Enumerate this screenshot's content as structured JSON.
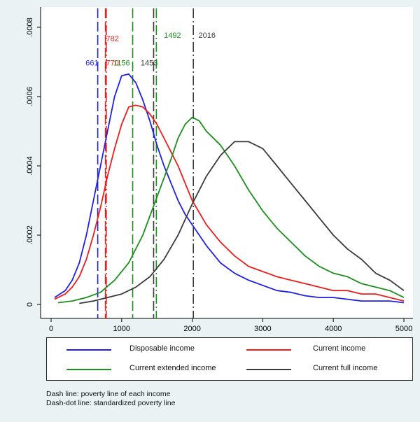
{
  "chart_data": {
    "type": "line",
    "title": "",
    "xlabel": "",
    "ylabel": "",
    "xlim": [
      0,
      5000
    ],
    "ylim": [
      0,
      0.0008
    ],
    "x_ticks": [
      0,
      1000,
      2000,
      3000,
      4000,
      5000
    ],
    "y_ticks": [
      0,
      0.0002,
      0.0004,
      0.0006,
      0.0008
    ],
    "x_tick_labels": [
      "0",
      "1000",
      "2000",
      "3000",
      "4000",
      "5000"
    ],
    "y_tick_labels": [
      "0",
      ".0002",
      ".0004",
      ".0006",
      ".0008"
    ],
    "grid": false,
    "legend_placement": "bottom",
    "series": [
      {
        "name": "Disposable income",
        "color": "#1f1fe6",
        "points": [
          [
            50,
            2e-05
          ],
          [
            200,
            4e-05
          ],
          [
            300,
            7e-05
          ],
          [
            400,
            0.00012
          ],
          [
            500,
            0.0002
          ],
          [
            600,
            0.0003
          ],
          [
            700,
            0.0004
          ],
          [
            800,
            0.0005
          ],
          [
            900,
            0.0006
          ],
          [
            1000,
            0.00066
          ],
          [
            1100,
            0.000665
          ],
          [
            1200,
            0.00064
          ],
          [
            1300,
            0.00059
          ],
          [
            1400,
            0.00053
          ],
          [
            1500,
            0.00046
          ],
          [
            1600,
            0.0004
          ],
          [
            1700,
            0.00035
          ],
          [
            1800,
            0.0003
          ],
          [
            1900,
            0.00026
          ],
          [
            2000,
            0.00023
          ],
          [
            2200,
            0.00017
          ],
          [
            2400,
            0.00012
          ],
          [
            2600,
            9e-05
          ],
          [
            2800,
            7e-05
          ],
          [
            3000,
            5.5e-05
          ],
          [
            3200,
            4e-05
          ],
          [
            3400,
            3.5e-05
          ],
          [
            3600,
            2.5e-05
          ],
          [
            3800,
            2e-05
          ],
          [
            4000,
            2e-05
          ],
          [
            4200,
            1.5e-05
          ],
          [
            4400,
            1e-05
          ],
          [
            4600,
            1e-05
          ],
          [
            4800,
            1e-05
          ],
          [
            5000,
            5e-06
          ]
        ]
      },
      {
        "name": "Current income",
        "color": "#ee1c1c",
        "points": [
          [
            50,
            1.5e-05
          ],
          [
            200,
            3e-05
          ],
          [
            300,
            5e-05
          ],
          [
            400,
            8e-05
          ],
          [
            500,
            0.00013
          ],
          [
            600,
            0.0002
          ],
          [
            700,
            0.00028
          ],
          [
            800,
            0.00037
          ],
          [
            900,
            0.00045
          ],
          [
            1000,
            0.00052
          ],
          [
            1100,
            0.00057
          ],
          [
            1200,
            0.000575
          ],
          [
            1300,
            0.00057
          ],
          [
            1400,
            0.00055
          ],
          [
            1500,
            0.00052
          ],
          [
            1600,
            0.00048
          ],
          [
            1700,
            0.00044
          ],
          [
            1800,
            0.0004
          ],
          [
            1900,
            0.00035
          ],
          [
            2000,
            0.0003
          ],
          [
            2200,
            0.00023
          ],
          [
            2400,
            0.00018
          ],
          [
            2600,
            0.00014
          ],
          [
            2800,
            0.00011
          ],
          [
            3000,
            9.5e-05
          ],
          [
            3200,
            8e-05
          ],
          [
            3400,
            7e-05
          ],
          [
            3600,
            6e-05
          ],
          [
            3800,
            5e-05
          ],
          [
            4000,
            4e-05
          ],
          [
            4200,
            4e-05
          ],
          [
            4400,
            3e-05
          ],
          [
            4600,
            3e-05
          ],
          [
            4800,
            2e-05
          ],
          [
            5000,
            1e-05
          ]
        ]
      },
      {
        "name": "Current extended income",
        "color": "#1a8f1a",
        "points": [
          [
            100,
            5e-06
          ],
          [
            300,
            1e-05
          ],
          [
            500,
            2e-05
          ],
          [
            700,
            3.5e-05
          ],
          [
            900,
            7e-05
          ],
          [
            1100,
            0.00012
          ],
          [
            1300,
            0.0002
          ],
          [
            1500,
            0.00031
          ],
          [
            1700,
            0.00042
          ],
          [
            1800,
            0.00048
          ],
          [
            1900,
            0.00052
          ],
          [
            2000,
            0.00054
          ],
          [
            2100,
            0.00053
          ],
          [
            2200,
            0.0005
          ],
          [
            2400,
            0.00046
          ],
          [
            2600,
            0.0004
          ],
          [
            2800,
            0.00033
          ],
          [
            3000,
            0.00027
          ],
          [
            3200,
            0.00022
          ],
          [
            3400,
            0.00018
          ],
          [
            3600,
            0.00014
          ],
          [
            3800,
            0.00011
          ],
          [
            4000,
            9e-05
          ],
          [
            4200,
            8e-05
          ],
          [
            4400,
            6e-05
          ],
          [
            4600,
            5e-05
          ],
          [
            4800,
            4e-05
          ],
          [
            5000,
            2e-05
          ]
        ]
      },
      {
        "name": "Current full income",
        "color": "#3a3a3a",
        "points": [
          [
            400,
            3e-06
          ],
          [
            600,
            1e-05
          ],
          [
            800,
            2e-05
          ],
          [
            1000,
            3e-05
          ],
          [
            1200,
            5e-05
          ],
          [
            1400,
            8e-05
          ],
          [
            1600,
            0.00013
          ],
          [
            1800,
            0.0002
          ],
          [
            2000,
            0.00029
          ],
          [
            2200,
            0.00037
          ],
          [
            2400,
            0.00043
          ],
          [
            2600,
            0.00047
          ],
          [
            2800,
            0.00047
          ],
          [
            3000,
            0.00045
          ],
          [
            3200,
            0.0004
          ],
          [
            3400,
            0.00035
          ],
          [
            3600,
            0.0003
          ],
          [
            3800,
            0.00025
          ],
          [
            4000,
            0.0002
          ],
          [
            4200,
            0.00016
          ],
          [
            4400,
            0.00013
          ],
          [
            4600,
            9e-05
          ],
          [
            4800,
            7e-05
          ],
          [
            5000,
            4e-05
          ]
        ]
      }
    ],
    "vlines": [
      {
        "x": 661,
        "label": "661",
        "style": "dash",
        "color": "#1f1fe6",
        "label_x": 580,
        "label_y": 0.00069
      },
      {
        "x": 770,
        "label": "770",
        "style": "dash",
        "color": "#ee1c1c",
        "label_x": 870,
        "label_y": 0.00069
      },
      {
        "x": 782,
        "label": "782",
        "style": "dashdot",
        "color": "#ee1c1c",
        "label_x": 870,
        "label_y": 0.00076
      },
      {
        "x": 1156,
        "label": "1156",
        "style": "dash",
        "color": "#1a8f1a",
        "label_x": 1000,
        "label_y": 0.00069
      },
      {
        "x": 1453,
        "label": "1453",
        "style": "dash",
        "color": "#3a3a3a",
        "label_x": 1390,
        "label_y": 0.00069
      },
      {
        "x": 1492,
        "label": "1492",
        "style": "dashdot",
        "color": "#1a8f1a",
        "label_x": 1720,
        "label_y": 0.00077
      },
      {
        "x": 2016,
        "label": "2016",
        "style": "dashdot",
        "color": "#3a3a3a",
        "label_x": 2210,
        "label_y": 0.00077
      }
    ]
  },
  "notes": {
    "line1": "Dash line: poverty line of each income",
    "line2": "Dash-dot line: standardized poverty line"
  }
}
